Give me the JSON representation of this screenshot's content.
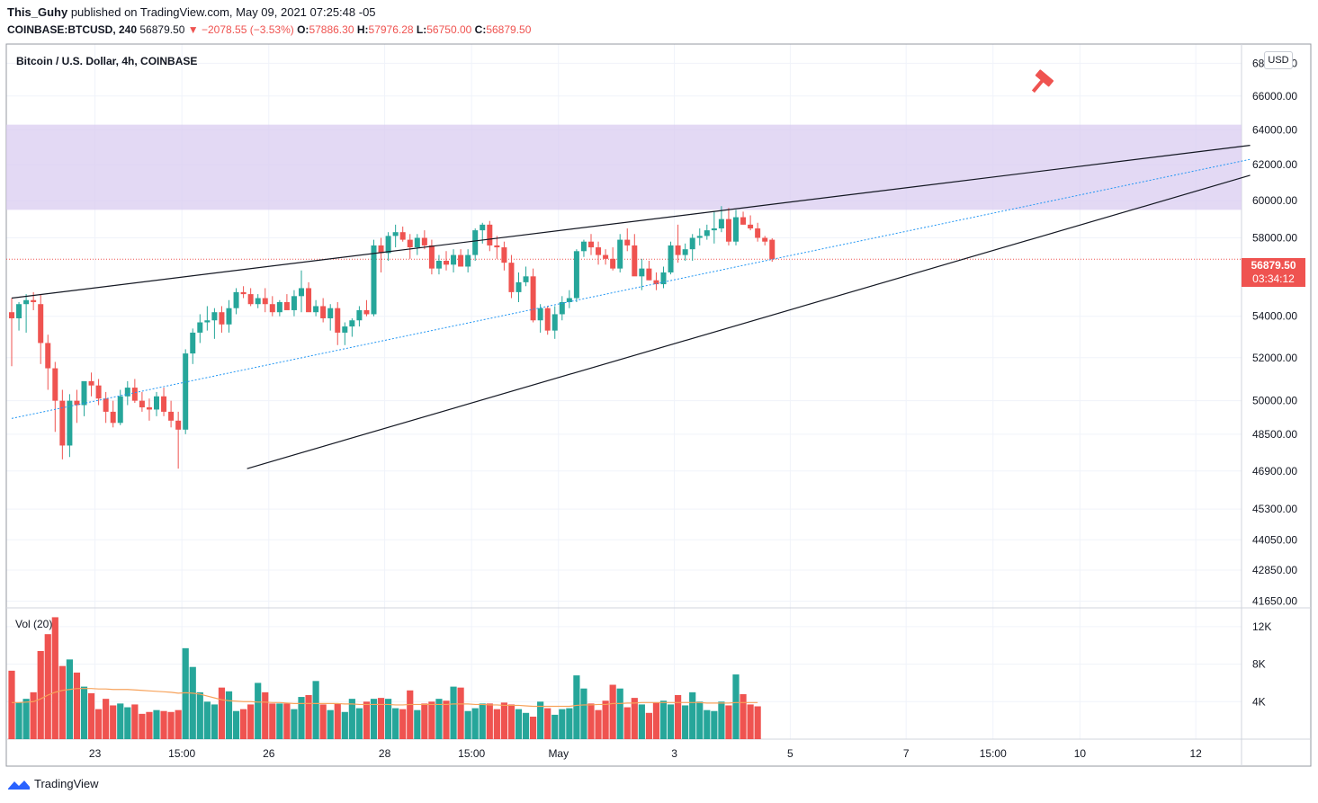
{
  "header": {
    "author": "This_Guhy",
    "published": "published on TradingView.com, May 09, 2021 07:25:48 -05",
    "symbol": "COINBASE:BTCUSD, 240",
    "last": "56879.50",
    "change": "▼ −2078.55 (−3.53%)",
    "o_label": "O:",
    "o": "57886.30",
    "h_label": "H:",
    "h": "57976.28",
    "l_label": "L:",
    "l": "56750.00",
    "c_label": "C:",
    "c": "56879.50"
  },
  "chart_title": "Bitcoin / U.S. Dollar, 4h, COINBASE",
  "currency": "USD",
  "price_label": "56879.50",
  "countdown": "03:34:12",
  "volume_label": "Vol (20)",
  "brand": "TradingView",
  "colors": {
    "up": "#26a69a",
    "down": "#ef5350",
    "zone": "#d9ccf0",
    "ma": "#f7a35c",
    "dotted": "#2196f3"
  },
  "icons": {
    "alert": "gavel-icon",
    "brand": "tradingview-logo-icon"
  },
  "chart_data": {
    "type": "candlestick",
    "ylim": [
      41400,
      69200
    ],
    "y_ticks": [
      {
        "v": 68000,
        "t": "68000.00"
      },
      {
        "v": 66000,
        "t": "66000.00"
      },
      {
        "v": 64000,
        "t": "64000.00"
      },
      {
        "v": 62000,
        "t": "62000.00"
      },
      {
        "v": 60000,
        "t": "60000.00"
      },
      {
        "v": 58000,
        "t": "58000.00"
      },
      {
        "v": 54000,
        "t": "54000.00"
      },
      {
        "v": 52000,
        "t": "52000.00"
      },
      {
        "v": 50000,
        "t": "50000.00"
      },
      {
        "v": 48500,
        "t": "48500.00"
      },
      {
        "v": 46900,
        "t": "46900.00"
      },
      {
        "v": 45300,
        "t": "45300.00"
      },
      {
        "v": 44050,
        "t": "44050.00"
      },
      {
        "v": 42850,
        "t": "42850.00"
      },
      {
        "v": 41650,
        "t": "41650.00"
      }
    ],
    "vol_ticks": [
      {
        "v": 12000,
        "t": "12K"
      },
      {
        "v": 8000,
        "t": "8K"
      },
      {
        "v": 4000,
        "t": "4K"
      }
    ],
    "x_ticks": [
      {
        "i": 11.5,
        "t": "23"
      },
      {
        "i": 23.5,
        "t": "15:00"
      },
      {
        "i": 35.5,
        "t": "26"
      },
      {
        "i": 51.5,
        "t": "28"
      },
      {
        "i": 63.5,
        "t": "15:00"
      },
      {
        "i": 75.5,
        "t": "May"
      },
      {
        "i": 91.5,
        "t": "3"
      },
      {
        "i": 107.5,
        "t": "5"
      },
      {
        "i": 123.5,
        "t": "7"
      },
      {
        "i": 135.5,
        "t": "15:00"
      },
      {
        "i": 147.5,
        "t": "10"
      },
      {
        "i": 163.5,
        "t": "12"
      }
    ],
    "resistance_zone": [
      59500,
      64300
    ],
    "current_price": 56879.5,
    "trendlines": [
      {
        "from": [
          0,
          54900
        ],
        "to": [
          171,
          63100
        ],
        "style": "solid"
      },
      {
        "from": [
          32.5,
          47000
        ],
        "to": [
          171,
          61400
        ],
        "style": "solid"
      },
      {
        "from": [
          0,
          49200
        ],
        "to": [
          171,
          62300
        ],
        "style": "dotted"
      }
    ],
    "candles": [
      [
        54200,
        54900,
        51600,
        53900
      ],
      [
        53900,
        54700,
        53300,
        54600
      ],
      [
        54600,
        55100,
        53200,
        54800
      ],
      [
        54800,
        55200,
        54300,
        54700
      ],
      [
        54600,
        55100,
        51700,
        52700
      ],
      [
        52700,
        53100,
        50500,
        51500
      ],
      [
        51500,
        51800,
        48600,
        50000
      ],
      [
        50000,
        50500,
        47400,
        48000
      ],
      [
        48000,
        50300,
        47500,
        50000
      ],
      [
        50000,
        50500,
        49000,
        49800
      ],
      [
        49800,
        50800,
        49300,
        50900
      ],
      [
        50900,
        51300,
        50200,
        50700
      ],
      [
        50700,
        51000,
        49800,
        50100
      ],
      [
        50100,
        50400,
        49000,
        49500
      ],
      [
        49500,
        50000,
        48800,
        49000
      ],
      [
        49000,
        50500,
        48900,
        50200
      ],
      [
        50200,
        50900,
        49800,
        50600
      ],
      [
        50600,
        51000,
        49900,
        50000
      ],
      [
        50000,
        50400,
        49500,
        49700
      ],
      [
        49700,
        50100,
        49100,
        49600
      ],
      [
        49600,
        50400,
        49300,
        50200
      ],
      [
        50200,
        50600,
        49300,
        49500
      ],
      [
        49500,
        50000,
        48800,
        49100
      ],
      [
        49100,
        49500,
        47000,
        48700
      ],
      [
        48700,
        52400,
        48500,
        52200
      ],
      [
        52200,
        53400,
        51700,
        53200
      ],
      [
        53200,
        54100,
        52700,
        53700
      ],
      [
        53700,
        54500,
        53300,
        53800
      ],
      [
        53800,
        54400,
        52900,
        54200
      ],
      [
        54200,
        54500,
        53200,
        53600
      ],
      [
        53600,
        54800,
        53200,
        54400
      ],
      [
        54400,
        55400,
        54100,
        55200
      ],
      [
        55200,
        55500,
        54900,
        55100
      ],
      [
        55100,
        55400,
        54500,
        54600
      ],
      [
        54600,
        55100,
        54400,
        54900
      ],
      [
        54900,
        55400,
        54200,
        54600
      ],
      [
        54600,
        55000,
        54000,
        54200
      ],
      [
        54200,
        54800,
        54000,
        54700
      ],
      [
        54700,
        55100,
        54400,
        54300
      ],
      [
        54300,
        55300,
        54000,
        55000
      ],
      [
        55000,
        56300,
        54200,
        55400
      ],
      [
        55400,
        55700,
        54300,
        54200
      ],
      [
        54200,
        54800,
        54000,
        54500
      ],
      [
        54500,
        54900,
        53700,
        53900
      ],
      [
        53900,
        54600,
        53300,
        54400
      ],
      [
        54400,
        54700,
        52600,
        53200
      ],
      [
        53200,
        53700,
        52600,
        53500
      ],
      [
        53500,
        53900,
        53000,
        53800
      ],
      [
        53800,
        54500,
        53500,
        54300
      ],
      [
        54300,
        54800,
        54000,
        54100
      ],
      [
        54100,
        57900,
        54000,
        57600
      ],
      [
        57600,
        58000,
        56200,
        57200
      ],
      [
        57200,
        58300,
        56800,
        58100
      ],
      [
        58100,
        58700,
        57500,
        58300
      ],
      [
        58300,
        58600,
        57800,
        57900
      ],
      [
        57900,
        58200,
        56900,
        57500
      ],
      [
        57500,
        58200,
        57100,
        58000
      ],
      [
        58000,
        58400,
        57400,
        57600
      ],
      [
        57600,
        57900,
        56100,
        56400
      ],
      [
        56400,
        57100,
        56100,
        56800
      ],
      [
        56800,
        57300,
        56300,
        56600
      ],
      [
        56600,
        57400,
        56200,
        57100
      ],
      [
        57100,
        57400,
        56500,
        56500
      ],
      [
        56500,
        57400,
        56200,
        57100
      ],
      [
        57100,
        58500,
        56800,
        58400
      ],
      [
        58400,
        58800,
        57700,
        58700
      ],
      [
        58700,
        58900,
        57300,
        57600
      ],
      [
        57600,
        58100,
        56900,
        57500
      ],
      [
        57500,
        57800,
        56300,
        56700
      ],
      [
        56700,
        57100,
        54900,
        55200
      ],
      [
        55200,
        56200,
        54700,
        55700
      ],
      [
        55700,
        56500,
        55500,
        56000
      ],
      [
        56000,
        56400,
        53700,
        53800
      ],
      [
        53800,
        54600,
        53200,
        54400
      ],
      [
        54400,
        54500,
        53100,
        53300
      ],
      [
        53300,
        54500,
        52900,
        54100
      ],
      [
        54100,
        55000,
        53800,
        54700
      ],
      [
        54700,
        55300,
        54400,
        54900
      ],
      [
        54900,
        57400,
        54700,
        57300
      ],
      [
        57300,
        57900,
        57000,
        57800
      ],
      [
        57800,
        58200,
        57100,
        57500
      ],
      [
        57500,
        57800,
        56600,
        57100
      ],
      [
        57100,
        57400,
        56600,
        56900
      ],
      [
        56900,
        57500,
        56300,
        56400
      ],
      [
        56400,
        58200,
        56200,
        57900
      ],
      [
        57900,
        58500,
        57300,
        57600
      ],
      [
        57600,
        58200,
        56100,
        56000
      ],
      [
        56000,
        56900,
        55300,
        56400
      ],
      [
        56400,
        56800,
        55800,
        55800
      ],
      [
        55800,
        56200,
        55300,
        55600
      ],
      [
        55600,
        56500,
        55400,
        56200
      ],
      [
        56200,
        57800,
        56100,
        57600
      ],
      [
        57600,
        58700,
        56700,
        57100
      ],
      [
        57100,
        57700,
        56800,
        57400
      ],
      [
        57400,
        58200,
        56800,
        58000
      ],
      [
        58000,
        58500,
        57600,
        58100
      ],
      [
        58100,
        58700,
        57900,
        58400
      ],
      [
        58400,
        59400,
        57700,
        58500
      ],
      [
        58500,
        59700,
        58300,
        59000
      ],
      [
        59000,
        59600,
        57600,
        57800
      ],
      [
        57800,
        59500,
        57600,
        59100
      ],
      [
        59100,
        59400,
        58700,
        58700
      ],
      [
        58700,
        59200,
        58400,
        58500
      ],
      [
        58500,
        58800,
        57800,
        58000
      ],
      [
        58000,
        58100,
        57600,
        57800
      ],
      [
        57900,
        57980,
        56750,
        56880
      ]
    ],
    "volumes": [
      7300,
      3900,
      4300,
      5000,
      9400,
      11200,
      13000,
      7800,
      8500,
      7100,
      5600,
      4900,
      3200,
      4300,
      3600,
      3800,
      3400,
      3700,
      2700,
      2900,
      3100,
      3000,
      2900,
      3100,
      9700,
      7700,
      5000,
      4000,
      3700,
      5500,
      5100,
      3000,
      3200,
      3700,
      6000,
      5000,
      3800,
      3800,
      3800,
      3200,
      4500,
      4700,
      6200,
      3700,
      3100,
      3800,
      2900,
      4300,
      3300,
      4000,
      4300,
      4400,
      4300,
      3300,
      3200,
      5200,
      3100,
      3800,
      4000,
      4300,
      4100,
      5600,
      5500,
      3000,
      3300,
      3800,
      3800,
      3200,
      3900,
      3700,
      3200,
      2800,
      2400,
      4000,
      3300,
      2600,
      3200,
      3300,
      6800,
      5400,
      3800,
      3100,
      4100,
      5800,
      5400,
      3400,
      4400,
      3700,
      2800,
      3900,
      4100,
      3700,
      4700,
      3600,
      5000,
      4000,
      3100,
      3000,
      4000,
      3600,
      6900,
      4800,
      3700,
      3500
    ],
    "ma_volume": [
      3900,
      3900,
      3950,
      4000,
      4300,
      4700,
      5000,
      5200,
      5300,
      5400,
      5400,
      5400,
      5350,
      5350,
      5300,
      5300,
      5300,
      5250,
      5200,
      5150,
      5100,
      5050,
      5000,
      4900,
      4950,
      4900,
      4800,
      4600,
      4400,
      4200,
      4100,
      4050,
      4000,
      4000,
      3950,
      3950,
      3900,
      3900,
      3850,
      3800,
      3800,
      3800,
      3800,
      3800,
      3800,
      3800,
      3750,
      3750,
      3700,
      3700,
      3700,
      3700,
      3700,
      3650,
      3650,
      3700,
      3700,
      3700,
      3700,
      3700,
      3700,
      3750,
      3750,
      3750,
      3700,
      3700,
      3650,
      3650,
      3600,
      3600,
      3600,
      3550,
      3500,
      3500,
      3500,
      3500,
      3500,
      3500,
      3600,
      3650,
      3650,
      3700,
      3700,
      3800,
      3800,
      3850,
      3850,
      3900,
      3900,
      3900,
      3900,
      3900,
      3900,
      3900,
      3900,
      3900,
      3850,
      3850,
      3850,
      3850,
      3900,
      3900,
      3900,
      3900
    ]
  }
}
